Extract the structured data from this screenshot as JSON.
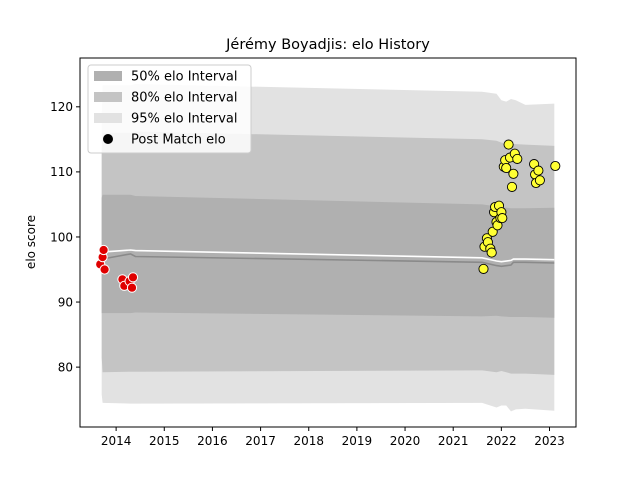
{
  "chart_data": {
    "type": "line",
    "title": "Jérémy Boyadjis: elo History",
    "xlabel": "",
    "ylabel": "elo score",
    "xlim": [
      2013.25,
      2023.55
    ],
    "ylim": [
      70.8,
      127.5
    ],
    "x_ticks": [
      2014,
      2015,
      2016,
      2017,
      2018,
      2019,
      2020,
      2021,
      2022,
      2023
    ],
    "y_ticks": [
      80,
      90,
      100,
      110,
      120
    ],
    "grid": false,
    "legend_placement": "top-left",
    "legend": [
      {
        "label": "50% elo Interval",
        "kind": "band",
        "color": "#b0b0b0"
      },
      {
        "label": "80% elo Interval",
        "kind": "band",
        "color": "#c4c4c4"
      },
      {
        "label": "95% elo Interval",
        "kind": "band",
        "color": "#e2e2e2"
      },
      {
        "label": "Post Match elo",
        "kind": "marker",
        "color": "#000000"
      }
    ],
    "colors": {
      "band50": "#b0b0b0",
      "band80": "#c4c4c4",
      "band95": "#e2e2e2",
      "median_line": "#8a8a8a",
      "mean_line": "#ffffff",
      "loss_points": "#e00000",
      "win_points": "#ffff33"
    },
    "series": [
      {
        "role": "band95",
        "x": [
          2013.7,
          2013.72,
          2014.3,
          2014.4,
          2021.6,
          2021.9,
          2022.0,
          2022.1,
          2022.2,
          2022.3,
          2022.5,
          2023.1
        ],
        "upper": [
          118.2,
          123.3,
          123.3,
          123.5,
          122.3,
          122.0,
          121.0,
          120.8,
          121.2,
          121.0,
          120.3,
          120.5
        ],
        "lower": [
          75.8,
          74.5,
          74.4,
          74.4,
          74.5,
          73.8,
          74.1,
          74.1,
          73.2,
          73.5,
          73.6,
          73.3
        ]
      },
      {
        "role": "band80",
        "x": [
          2013.7,
          2013.72,
          2014.3,
          2014.4,
          2021.6,
          2021.9,
          2022.0,
          2022.2,
          2022.5,
          2023.1
        ],
        "upper": [
          113.5,
          116.0,
          116.0,
          116.2,
          115.0,
          114.8,
          114.5,
          114.3,
          114.2,
          114.0
        ],
        "lower": [
          81.5,
          79.2,
          79.3,
          79.3,
          79.5,
          79.2,
          79.4,
          79.0,
          79.0,
          78.8
        ]
      },
      {
        "role": "band50",
        "x": [
          2013.7,
          2013.72,
          2014.3,
          2014.4,
          2021.6,
          2021.9,
          2022.0,
          2022.2,
          2022.5,
          2023.1
        ],
        "upper": [
          106.0,
          106.5,
          106.5,
          106.3,
          105.0,
          104.7,
          104.6,
          104.4,
          104.4,
          104.5
        ],
        "lower": [
          88.3,
          88.3,
          88.3,
          88.4,
          87.8,
          87.9,
          87.8,
          87.7,
          87.7,
          87.6
        ]
      },
      {
        "role": "median_line",
        "x": [
          2013.7,
          2014.3,
          2014.4,
          2021.6,
          2021.9,
          2022.0,
          2022.2,
          2022.25,
          2022.5,
          2023.1
        ],
        "y": [
          96.6,
          97.4,
          97.0,
          96.1,
          95.6,
          95.5,
          95.7,
          96.1,
          96.1,
          96.0
        ]
      },
      {
        "role": "mean_line",
        "x": [
          2013.7,
          2013.75,
          2014.3,
          2014.4,
          2021.6,
          2021.9,
          2022.0,
          2022.2,
          2022.25,
          2022.5,
          2023.1
        ],
        "y": [
          97.3,
          97.7,
          98.0,
          97.9,
          96.8,
          96.3,
          96.2,
          96.4,
          96.6,
          96.6,
          96.5
        ]
      },
      {
        "name": "Post Match elo",
        "role": "loss_points",
        "x": [
          2013.67,
          2013.72,
          2013.74,
          2013.76,
          2014.13,
          2014.17,
          2014.28,
          2014.33,
          2014.35
        ],
        "y": [
          95.8,
          96.9,
          98.0,
          95.0,
          93.5,
          92.5,
          93.2,
          92.2,
          93.8
        ]
      },
      {
        "name": "Post Match elo",
        "role": "win_points",
        "x": [
          2021.63,
          2021.65,
          2021.7,
          2021.72,
          2021.77,
          2021.8,
          2021.82,
          2021.85,
          2021.87,
          2021.9,
          2021.92,
          2021.95,
          2021.98,
          2022.0,
          2022.02,
          2022.05,
          2022.08,
          2022.1,
          2022.15,
          2022.18,
          2022.22,
          2022.25,
          2022.28,
          2022.33,
          2022.68,
          2022.7,
          2022.72,
          2022.77,
          2022.8,
          2023.12
        ],
        "y": [
          95.1,
          98.5,
          99.8,
          99.2,
          98.2,
          97.6,
          100.8,
          103.8,
          104.6,
          102.3,
          101.8,
          104.8,
          102.9,
          103.8,
          102.9,
          110.8,
          111.8,
          110.6,
          114.2,
          112.2,
          107.7,
          109.7,
          112.8,
          112.0,
          111.2,
          109.6,
          108.3,
          110.2,
          108.7,
          110.9
        ]
      }
    ]
  }
}
